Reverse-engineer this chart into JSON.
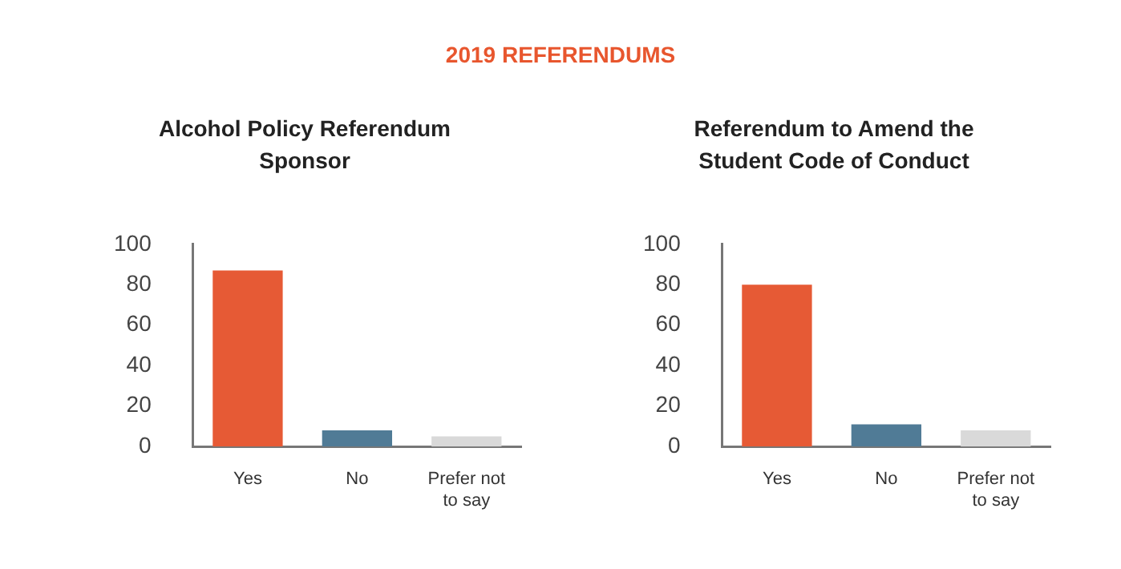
{
  "chart_data": [
    {
      "type": "bar",
      "title": "2019 REFERENDUMS",
      "subtitle": "Alcohol Policy Referendum Sponsor",
      "categories": [
        "Yes",
        "No",
        "Prefer not to say"
      ],
      "values": [
        87,
        8,
        5
      ],
      "colors": [
        "#e65a35",
        "#507b96",
        "#d9d9d9"
      ],
      "ylim": [
        0,
        100
      ],
      "yticks": [
        0,
        20,
        40,
        60,
        80,
        100
      ],
      "grid": false,
      "legend": false
    },
    {
      "type": "bar",
      "title": "Referendum to Amend the Student Code of Conduct",
      "categories": [
        "Yes",
        "No",
        "Prefer not to say"
      ],
      "values": [
        80,
        11,
        8
      ],
      "colors": [
        "#e65a35",
        "#507b96",
        "#d9d9d9"
      ],
      "ylim": [
        0,
        100
      ],
      "yticks": [
        0,
        20,
        40,
        60,
        80,
        100
      ],
      "grid": false,
      "legend": false
    }
  ]
}
